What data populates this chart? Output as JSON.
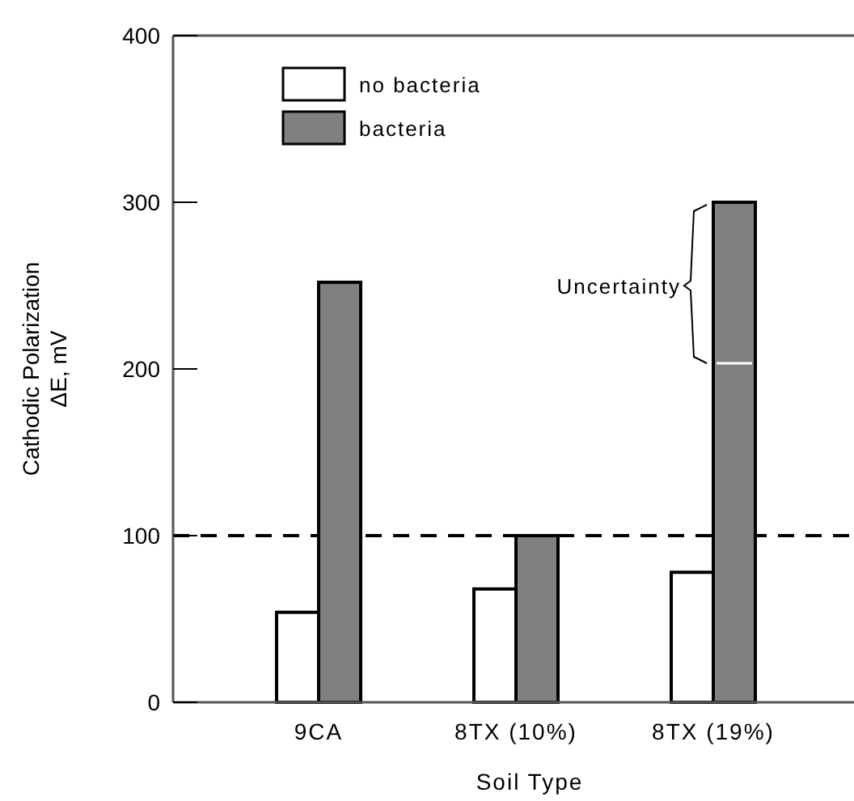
{
  "chart_data": {
    "type": "bar",
    "xlabel": "Soil Type",
    "ylabel": "Cathodic Polarization\nΔE, mV",
    "categories": [
      "9CA",
      "8TX (10%)",
      "8TX (19%)"
    ],
    "series": [
      {
        "name": "no bacteria",
        "color": "#ffffff",
        "values": [
          54,
          68,
          78
        ]
      },
      {
        "name": "bacteria",
        "color": "#808080",
        "values": [
          252,
          100,
          300
        ]
      }
    ],
    "ylim": [
      0,
      400
    ],
    "yticks": [
      0,
      100,
      200,
      300,
      400
    ],
    "ref_lines": [
      {
        "axis": "y",
        "value": 100,
        "line_style": "dashed",
        "color": "#000000"
      }
    ],
    "annotations": [
      {
        "text": "Uncertainty",
        "x": "8TX (19%)",
        "y": 250
      }
    ],
    "legend": "top left",
    "grid": false
  }
}
